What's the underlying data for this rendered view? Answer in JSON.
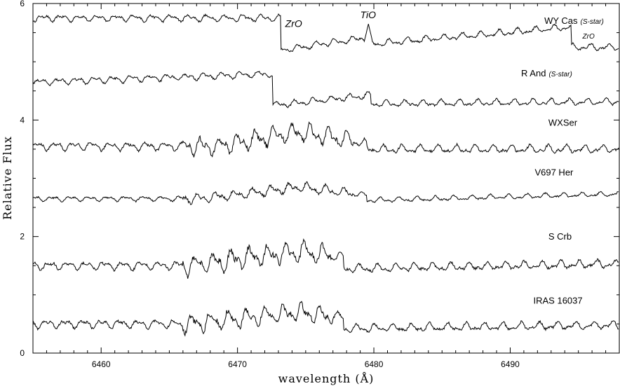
{
  "chart_data": {
    "type": "line",
    "xlabel": "wavelength (Å)",
    "ylabel": "Relative Flux",
    "xlim": [
      6455,
      6498
    ],
    "ylim": [
      0,
      6
    ],
    "xticks": [
      6460,
      6470,
      6480,
      6490
    ],
    "yticks": [
      0,
      2,
      4,
      6
    ],
    "x_tick_labels": [
      "6460",
      "6470",
      "6480",
      "6490"
    ],
    "y_tick_labels": [
      "0",
      "2",
      "4",
      "6"
    ],
    "grid": false,
    "series": [
      {
        "name": "WY Cas",
        "note": "(S-star)",
        "label_x": 6492.5,
        "label_y": 5.65
      },
      {
        "name": "R And",
        "note": "(S-star)",
        "label_x": 6490.8,
        "label_y": 4.75
      },
      {
        "name": "WXSer",
        "note": "",
        "label_x": 6492.8,
        "label_y": 3.9
      },
      {
        "name": "V697 Her",
        "note": "",
        "label_x": 6491.8,
        "label_y": 3.05
      },
      {
        "name": "S Crb",
        "note": "",
        "label_x": 6492.8,
        "label_y": 1.95
      },
      {
        "name": "IRAS 16037",
        "note": "",
        "label_x": 6491.7,
        "label_y": 0.85
      }
    ],
    "annotations": [
      {
        "text": "ZrO",
        "x": 6473.5,
        "y": 5.6
      },
      {
        "text": "TiO",
        "x": 6479.0,
        "y": 5.75
      },
      {
        "text": "ZrO",
        "x": 6495.3,
        "y": 5.4
      }
    ]
  }
}
